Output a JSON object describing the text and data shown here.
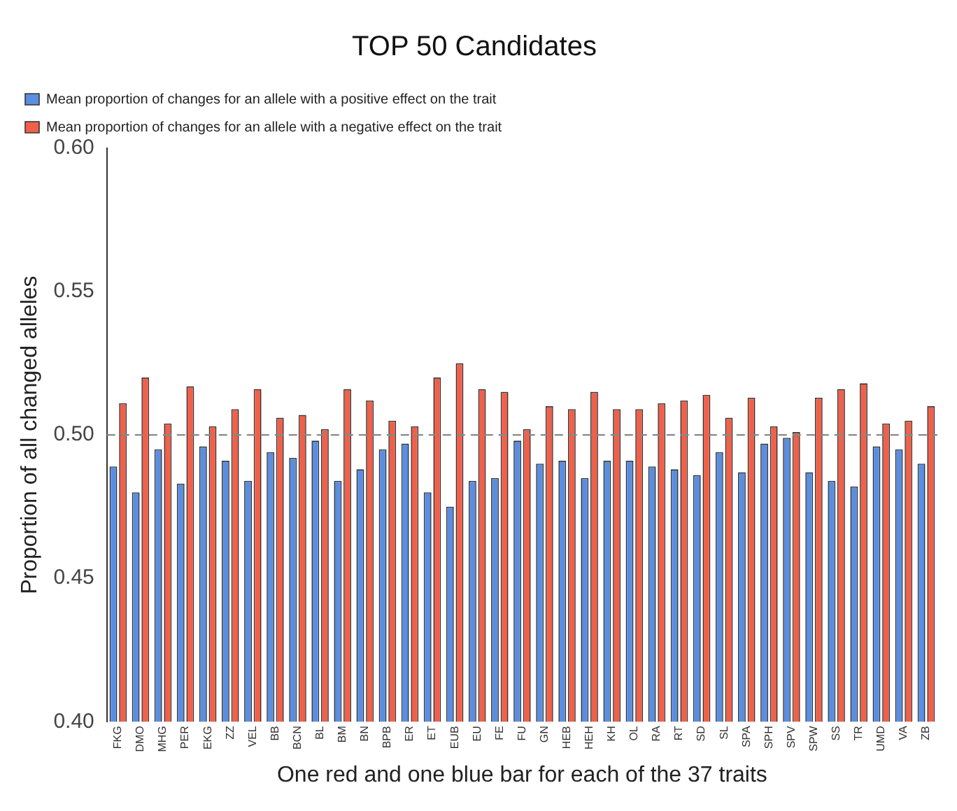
{
  "chart_data": {
    "type": "bar",
    "title": "TOP 50 Candidates",
    "xlabel": "One red and one blue bar for each of the 37 traits",
    "ylabel": "Proportion of all changed alleles",
    "categories": [
      "FKG",
      "DMO",
      "MHG",
      "PER",
      "EKG",
      "ZZ",
      "VEL",
      "BB",
      "BCN",
      "BL",
      "BM",
      "BN",
      "BPB",
      "ER",
      "ET",
      "EUB",
      "EU",
      "FE",
      "FU",
      "GN",
      "HEB",
      "HEH",
      "KH",
      "OL",
      "RA",
      "RT",
      "SD",
      "SL",
      "SPA",
      "SPH",
      "SPV",
      "SPW",
      "SS",
      "TR",
      "UMD",
      "VA",
      "ZB"
    ],
    "series": [
      {
        "name": "Mean proportion of changes for an allele with a positive effect on the trait",
        "color": "#5b8ee0",
        "values": [
          0.489,
          0.48,
          0.495,
          0.483,
          0.496,
          0.491,
          0.484,
          0.494,
          0.492,
          0.498,
          0.484,
          0.488,
          0.495,
          0.497,
          0.48,
          0.475,
          0.484,
          0.485,
          0.498,
          0.49,
          0.491,
          0.485,
          0.491,
          0.491,
          0.489,
          0.488,
          0.486,
          0.494,
          0.487,
          0.497,
          0.499,
          0.487,
          0.484,
          0.482,
          0.496,
          0.495,
          0.49
        ]
      },
      {
        "name": "Mean proportion of changes for an allele with a negative effect on the trait",
        "color": "#f0604a",
        "values": [
          0.511,
          0.52,
          0.504,
          0.517,
          0.503,
          0.509,
          0.516,
          0.506,
          0.507,
          0.502,
          0.516,
          0.512,
          0.505,
          0.503,
          0.52,
          0.525,
          0.516,
          0.515,
          0.502,
          0.51,
          0.509,
          0.515,
          0.509,
          0.509,
          0.511,
          0.512,
          0.514,
          0.506,
          0.513,
          0.503,
          0.501,
          0.513,
          0.516,
          0.518,
          0.504,
          0.505,
          0.51
        ]
      }
    ],
    "ylim": [
      0.4,
      0.6
    ],
    "yticks": [
      {
        "value": 0.4,
        "label": "0.40"
      },
      {
        "value": 0.45,
        "label": "0.45"
      },
      {
        "value": 0.5,
        "label": "0.50"
      },
      {
        "value": 0.55,
        "label": "0.55"
      },
      {
        "value": 0.6,
        "label": "0.60"
      }
    ],
    "ref_lines": [
      {
        "axis": "y",
        "value": 0.5,
        "color": "#888888",
        "line_style": "dashed"
      }
    ],
    "grid": false,
    "legend": "top left"
  }
}
